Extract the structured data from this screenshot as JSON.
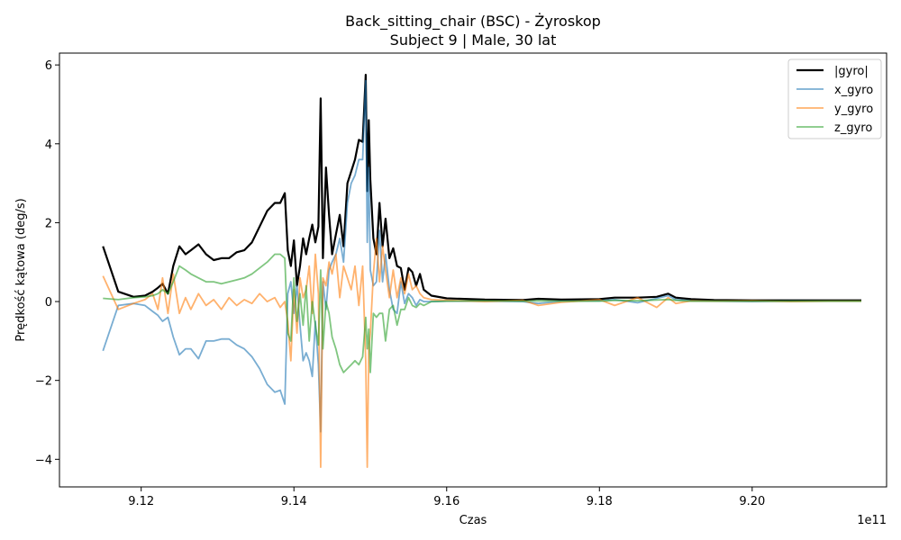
{
  "chart_data": {
    "type": "line",
    "title": "Back_sitting_chair (BSC) - Żyroskop",
    "subtitle": "Subject 9 | Male, 30 lat",
    "xlabel": "Czas",
    "ylabel": "Prędkość kątowa (deg/s)",
    "x_offset_label": "1e11",
    "xlim": [
      9.1093,
      9.2176
    ],
    "ylim": [
      -4.7,
      6.3
    ],
    "x_ticks": [
      9.12,
      9.14,
      9.16,
      9.18,
      9.2
    ],
    "x_tick_labels": [
      "9.12",
      "9.14",
      "9.16",
      "9.18",
      "9.20"
    ],
    "y_ticks": [
      -4,
      -2,
      0,
      2,
      4,
      6
    ],
    "y_tick_labels": [
      "−4",
      "−2",
      "0",
      "2",
      "4",
      "6"
    ],
    "grid": false,
    "legend_position": "top-right",
    "series": [
      {
        "name": "|gyro|",
        "color": "#000000",
        "opacity": 1.0,
        "width": 2.2,
        "x": [
          9.115,
          9.117,
          9.119,
          9.1205,
          9.1215,
          9.1222,
          9.1228,
          9.1235,
          9.1242,
          9.125,
          9.1258,
          9.1265,
          9.1275,
          9.1285,
          9.1295,
          9.1305,
          9.1315,
          9.1325,
          9.1335,
          9.1345,
          9.1355,
          9.1365,
          9.1375,
          9.1382,
          9.1388,
          9.1392,
          9.1396,
          9.14,
          9.1404,
          9.1408,
          9.1412,
          9.1416,
          9.142,
          9.1424,
          9.1428,
          9.1432,
          9.1435,
          9.1438,
          9.1442,
          9.1446,
          9.145,
          9.1455,
          9.146,
          9.1465,
          9.147,
          9.1475,
          9.148,
          9.1485,
          9.149,
          9.1494,
          9.1496,
          9.1498,
          9.15,
          9.1504,
          9.1508,
          9.1512,
          9.1516,
          9.152,
          9.1525,
          9.153,
          9.1535,
          9.154,
          9.1545,
          9.155,
          9.1555,
          9.156,
          9.1565,
          9.157,
          9.158,
          9.16,
          9.165,
          9.17,
          9.172,
          9.175,
          9.18,
          9.182,
          9.185,
          9.1875,
          9.189,
          9.19,
          9.192,
          9.195,
          9.2,
          9.205,
          9.21,
          9.2143
        ],
        "y": [
          1.4,
          0.25,
          0.12,
          0.15,
          0.25,
          0.35,
          0.45,
          0.2,
          0.9,
          1.4,
          1.2,
          1.3,
          1.45,
          1.2,
          1.05,
          1.1,
          1.1,
          1.25,
          1.3,
          1.5,
          1.9,
          2.3,
          2.5,
          2.5,
          2.75,
          1.3,
          0.9,
          1.55,
          0.4,
          0.9,
          1.6,
          1.2,
          1.6,
          1.95,
          1.5,
          1.9,
          5.15,
          1.1,
          3.4,
          2.2,
          1.2,
          1.7,
          2.2,
          1.4,
          3.0,
          3.3,
          3.6,
          4.1,
          4.05,
          5.75,
          2.8,
          4.6,
          3.1,
          1.6,
          1.2,
          2.5,
          1.4,
          2.1,
          1.1,
          1.35,
          0.9,
          0.85,
          0.3,
          0.85,
          0.75,
          0.4,
          0.7,
          0.3,
          0.15,
          0.08,
          0.05,
          0.04,
          0.07,
          0.05,
          0.06,
          0.1,
          0.1,
          0.12,
          0.2,
          0.1,
          0.06,
          0.04,
          0.03,
          0.03,
          0.03,
          0.03
        ]
      },
      {
        "name": "x_gyro",
        "color": "#1f77b4",
        "opacity": 0.6,
        "width": 1.8,
        "x": [
          9.115,
          9.117,
          9.119,
          9.1205,
          9.1215,
          9.1222,
          9.1228,
          9.1235,
          9.1242,
          9.125,
          9.1258,
          9.1265,
          9.1275,
          9.1285,
          9.1295,
          9.1305,
          9.1315,
          9.1325,
          9.1335,
          9.1345,
          9.1355,
          9.1365,
          9.1375,
          9.1382,
          9.1388,
          9.1392,
          9.1396,
          9.14,
          9.1404,
          9.1408,
          9.1412,
          9.1416,
          9.142,
          9.1424,
          9.1428,
          9.1432,
          9.1435,
          9.1438,
          9.1442,
          9.1446,
          9.145,
          9.1455,
          9.146,
          9.1465,
          9.147,
          9.1475,
          9.148,
          9.1485,
          9.149,
          9.1494,
          9.1496,
          9.1498,
          9.15,
          9.1504,
          9.1508,
          9.1512,
          9.1516,
          9.152,
          9.1525,
          9.153,
          9.1535,
          9.154,
          9.1545,
          9.155,
          9.1555,
          9.156,
          9.1565,
          9.157,
          9.158,
          9.16,
          9.165,
          9.17,
          9.172,
          9.175,
          9.18,
          9.182,
          9.185,
          9.1875,
          9.189,
          9.19,
          9.192,
          9.195,
          9.2,
          9.205,
          9.21,
          9.2143
        ],
        "y": [
          -1.25,
          -0.1,
          -0.05,
          -0.1,
          -0.25,
          -0.35,
          -0.5,
          -0.4,
          -0.9,
          -1.35,
          -1.2,
          -1.2,
          -1.45,
          -1.0,
          -1.0,
          -0.95,
          -0.95,
          -1.1,
          -1.2,
          -1.4,
          -1.7,
          -2.1,
          -2.3,
          -2.25,
          -2.6,
          0.2,
          0.5,
          -0.3,
          0.4,
          -0.6,
          -1.5,
          -1.3,
          -1.5,
          -1.9,
          -0.5,
          -1.6,
          -3.3,
          0.5,
          -0.2,
          0.8,
          1.0,
          1.2,
          1.6,
          1.0,
          2.5,
          3.0,
          3.2,
          3.6,
          3.6,
          5.6,
          1.5,
          3.4,
          0.8,
          0.4,
          0.5,
          1.8,
          0.5,
          1.2,
          0.3,
          -0.2,
          -0.3,
          0.5,
          -0.05,
          0.2,
          0.1,
          -0.1,
          0.05,
          0.0,
          0.0,
          0.01,
          0.01,
          0.0,
          -0.05,
          0.01,
          0.02,
          0.05,
          -0.03,
          0.08,
          0.15,
          0.05,
          0.02,
          0.01,
          0.0,
          0.01,
          0.01,
          0.01
        ]
      },
      {
        "name": "y_gyro",
        "color": "#ff7f0e",
        "opacity": 0.6,
        "width": 1.8,
        "x": [
          9.115,
          9.117,
          9.119,
          9.1205,
          9.1215,
          9.1222,
          9.1228,
          9.1235,
          9.1242,
          9.125,
          9.1258,
          9.1265,
          9.1275,
          9.1285,
          9.1295,
          9.1305,
          9.1315,
          9.1325,
          9.1335,
          9.1345,
          9.1355,
          9.1365,
          9.1375,
          9.1382,
          9.1388,
          9.1392,
          9.1396,
          9.14,
          9.1404,
          9.1408,
          9.1412,
          9.1416,
          9.142,
          9.1424,
          9.1428,
          9.1432,
          9.1435,
          9.1438,
          9.1442,
          9.1446,
          9.145,
          9.1455,
          9.146,
          9.1465,
          9.147,
          9.1475,
          9.148,
          9.1485,
          9.149,
          9.1494,
          9.1496,
          9.1498,
          9.15,
          9.1504,
          9.1508,
          9.1512,
          9.1516,
          9.152,
          9.1525,
          9.153,
          9.1535,
          9.154,
          9.1545,
          9.155,
          9.1555,
          9.156,
          9.1565,
          9.157,
          9.158,
          9.16,
          9.165,
          9.17,
          9.172,
          9.175,
          9.18,
          9.182,
          9.185,
          9.1875,
          9.189,
          9.19,
          9.192,
          9.195,
          9.2,
          9.205,
          9.21,
          9.2143
        ],
        "y": [
          0.65,
          -0.2,
          -0.05,
          0.05,
          0.2,
          -0.2,
          0.6,
          -0.3,
          0.7,
          -0.3,
          0.1,
          -0.2,
          0.2,
          -0.1,
          0.05,
          -0.2,
          0.1,
          -0.1,
          0.05,
          -0.05,
          0.2,
          0.0,
          0.1,
          -0.15,
          0.0,
          -0.5,
          -1.5,
          0.3,
          -0.8,
          0.6,
          0.1,
          0.3,
          0.9,
          -0.3,
          1.2,
          0.2,
          -4.2,
          0.6,
          0.4,
          1.0,
          0.7,
          1.2,
          0.1,
          0.9,
          0.6,
          0.3,
          0.9,
          -0.1,
          0.9,
          -1.5,
          -4.2,
          -1.2,
          -0.8,
          0.7,
          1.6,
          0.5,
          1.4,
          0.8,
          0.1,
          0.8,
          0.1,
          0.6,
          0.2,
          0.7,
          0.3,
          0.4,
          0.2,
          0.1,
          0.05,
          0.03,
          0.0,
          0.03,
          -0.1,
          -0.02,
          0.05,
          -0.1,
          0.1,
          -0.15,
          0.1,
          -0.05,
          0.02,
          0.01,
          0.02,
          0.0,
          0.01,
          0.01
        ]
      },
      {
        "name": "z_gyro",
        "color": "#2ca02c",
        "opacity": 0.6,
        "width": 1.8,
        "x": [
          9.115,
          9.117,
          9.119,
          9.1205,
          9.1215,
          9.1222,
          9.1228,
          9.1235,
          9.1242,
          9.125,
          9.1258,
          9.1265,
          9.1275,
          9.1285,
          9.1295,
          9.1305,
          9.1315,
          9.1325,
          9.1335,
          9.1345,
          9.1355,
          9.1365,
          9.1375,
          9.1382,
          9.1388,
          9.1392,
          9.1396,
          9.14,
          9.1404,
          9.1408,
          9.1412,
          9.1416,
          9.142,
          9.1424,
          9.1428,
          9.1432,
          9.1435,
          9.1438,
          9.1442,
          9.1446,
          9.145,
          9.1455,
          9.146,
          9.1465,
          9.147,
          9.1475,
          9.148,
          9.1485,
          9.149,
          9.1494,
          9.1496,
          9.1498,
          9.15,
          9.1504,
          9.1508,
          9.1512,
          9.1516,
          9.152,
          9.1525,
          9.153,
          9.1535,
          9.154,
          9.1545,
          9.155,
          9.1555,
          9.156,
          9.1565,
          9.157,
          9.158,
          9.16,
          9.165,
          9.17,
          9.172,
          9.175,
          9.18,
          9.182,
          9.185,
          9.1875,
          9.189,
          9.19,
          9.192,
          9.195,
          9.2,
          9.205,
          9.21,
          9.2143
        ],
        "y": [
          0.08,
          0.05,
          0.1,
          0.12,
          0.15,
          0.2,
          0.3,
          0.2,
          0.5,
          0.9,
          0.8,
          0.7,
          0.6,
          0.5,
          0.5,
          0.45,
          0.5,
          0.55,
          0.6,
          0.7,
          0.85,
          1.0,
          1.2,
          1.2,
          1.1,
          -0.8,
          -1.0,
          0.6,
          -0.5,
          0.2,
          -0.6,
          0.4,
          -1.0,
          0.0,
          -0.6,
          -1.1,
          0.8,
          -1.2,
          0.0,
          -0.3,
          -0.9,
          -1.2,
          -1.6,
          -1.8,
          -1.7,
          -1.6,
          -1.5,
          -1.6,
          -1.4,
          -0.4,
          -1.2,
          -0.7,
          -1.8,
          -0.3,
          -0.4,
          -0.3,
          -0.3,
          -1.0,
          -0.2,
          -0.1,
          -0.6,
          -0.2,
          -0.2,
          0.1,
          -0.1,
          -0.15,
          -0.05,
          -0.1,
          0.0,
          0.01,
          0.02,
          0.01,
          0.02,
          0.01,
          0.01,
          0.03,
          0.02,
          0.04,
          0.05,
          0.03,
          0.01,
          0.01,
          0.01,
          0.01,
          0.01,
          0.01
        ]
      }
    ]
  }
}
